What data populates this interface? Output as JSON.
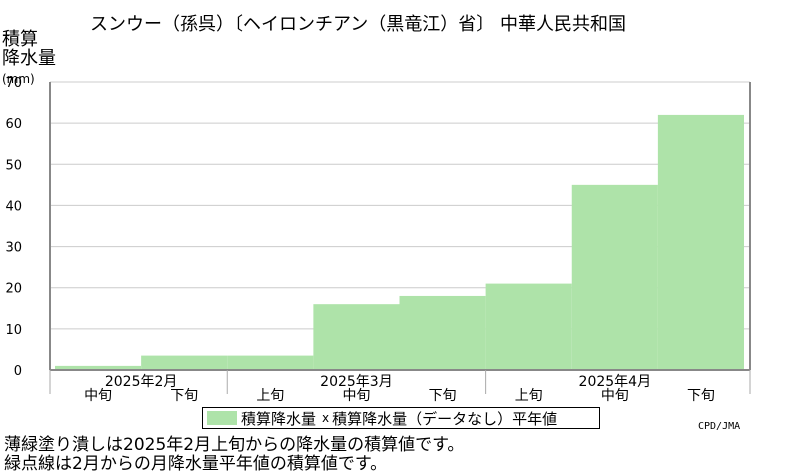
{
  "header": {
    "title": "スンウー（孫呉）〔ヘイロンチアン（黒竜江）省〕 中華人民共和国"
  },
  "chart_data": {
    "type": "area",
    "ylabel": "積算\n降水量",
    "yunit": "(mm)",
    "ylim": [
      0,
      70
    ],
    "yticks": [
      0,
      10,
      20,
      30,
      40,
      50,
      60,
      70
    ],
    "grid": true,
    "dekads": [
      "中旬",
      "下旬",
      "上旬",
      "中旬",
      "下旬",
      "上旬",
      "中旬",
      "下旬"
    ],
    "months": [
      "2025年2月",
      "2025年3月",
      "2025年4月"
    ],
    "series": [
      {
        "name": "積算降水量",
        "color": "#aee3a9",
        "values": [
          1,
          3.5,
          3.5,
          16,
          18,
          21,
          45,
          62
        ]
      }
    ],
    "legend_position": "bottom-center"
  },
  "legend": {
    "series_label": "積算降水量",
    "marker_symbol": "x",
    "normal_label": "積算降水量（データなし）平年値"
  },
  "footer": {
    "credit": "CPD/JMA",
    "note1": "薄緑塗り潰しは2025年2月上旬からの降水量の積算値です。",
    "note2": "緑点線は2月からの月降水量平年値の積算値です。"
  }
}
